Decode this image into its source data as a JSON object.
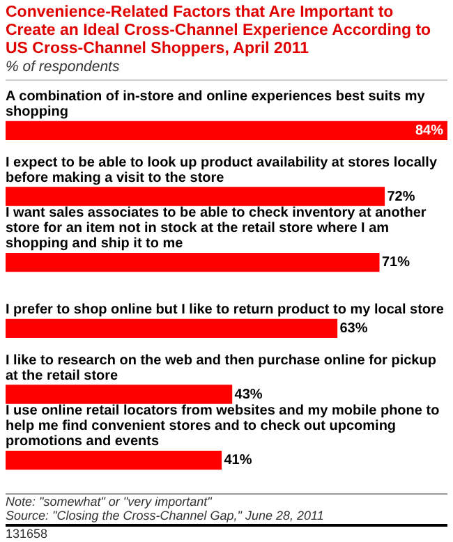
{
  "chart_data": {
    "type": "bar",
    "orientation": "horizontal",
    "title": "Convenience-Related Factors that Are Important to Create an Ideal Cross-Channel Experience According to US Cross-Channel Shoppers, April 2011",
    "subtitle": "% of respondents",
    "categories": [
      "A combination of in-store and online experiences best suits my shopping",
      "I expect to be able to look up product availability at stores locally before making a visit to the store",
      "I want sales associates to be able to check inventory at another store for an item not in stock at the retail store where I am shopping and ship it to me",
      "I prefer to shop online but I like to return product to my local store",
      "I like to research on the web and then purchase online for pickup at the retail store",
      "I use online retail locators from websites and my mobile phone to help me find convenient stores and to check out upcoming promotions and events"
    ],
    "values": [
      84,
      72,
      71,
      63,
      43,
      41
    ],
    "value_labels": [
      "84%",
      "72%",
      "71%",
      "63%",
      "43%",
      "41%"
    ],
    "color": "#ff0000",
    "tick_labels": false,
    "annotations": [
      "Note: \"somewhat\" or \"very important\"",
      "Source: \"Closing the Cross-Channel Gap,\" June 28, 2011",
      "131658"
    ]
  }
}
